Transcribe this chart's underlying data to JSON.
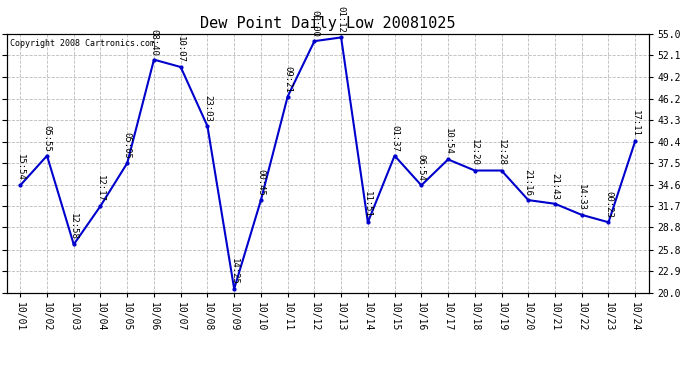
{
  "title": "Dew Point Daily Low 20081025",
  "copyright": "Copyright 2008 Cartronics.com",
  "x_labels": [
    "10/01",
    "10/02",
    "10/03",
    "10/04",
    "10/05",
    "10/06",
    "10/07",
    "10/08",
    "10/09",
    "10/10",
    "10/11",
    "10/12",
    "10/13",
    "10/14",
    "10/15",
    "10/16",
    "10/17",
    "10/18",
    "10/19",
    "10/20",
    "10/21",
    "10/22",
    "10/23",
    "10/24"
  ],
  "y_values": [
    34.5,
    38.5,
    26.5,
    31.7,
    37.5,
    51.5,
    50.5,
    42.5,
    20.5,
    32.5,
    46.5,
    54.0,
    54.5,
    29.5,
    38.5,
    34.5,
    38.0,
    36.5,
    36.5,
    32.5,
    32.0,
    30.5,
    29.5,
    40.5
  ],
  "point_labels": [
    "15:54",
    "05:55",
    "12:58",
    "12:17",
    "05:05",
    "08:40",
    "10:07",
    "23:03",
    "14:25",
    "00:45",
    "09:21",
    "00:00",
    "01:12",
    "11:51",
    "01:37",
    "06:54",
    "10:54",
    "12:20",
    "12:28",
    "21:16",
    "21:43",
    "14:33",
    "00:23",
    "17:11"
  ],
  "line_color": "#0000CC",
  "marker_color": "#0000CC",
  "bg_color": "#FFFFFF",
  "grid_color": "#BBBBBB",
  "title_fontsize": 11,
  "label_fontsize": 6.5,
  "tick_fontsize": 7,
  "ylim_min": 20.0,
  "ylim_max": 55.0,
  "yticks": [
    20.0,
    22.9,
    25.8,
    28.8,
    31.7,
    34.6,
    37.5,
    40.4,
    43.3,
    46.2,
    49.2,
    52.1,
    55.0
  ]
}
